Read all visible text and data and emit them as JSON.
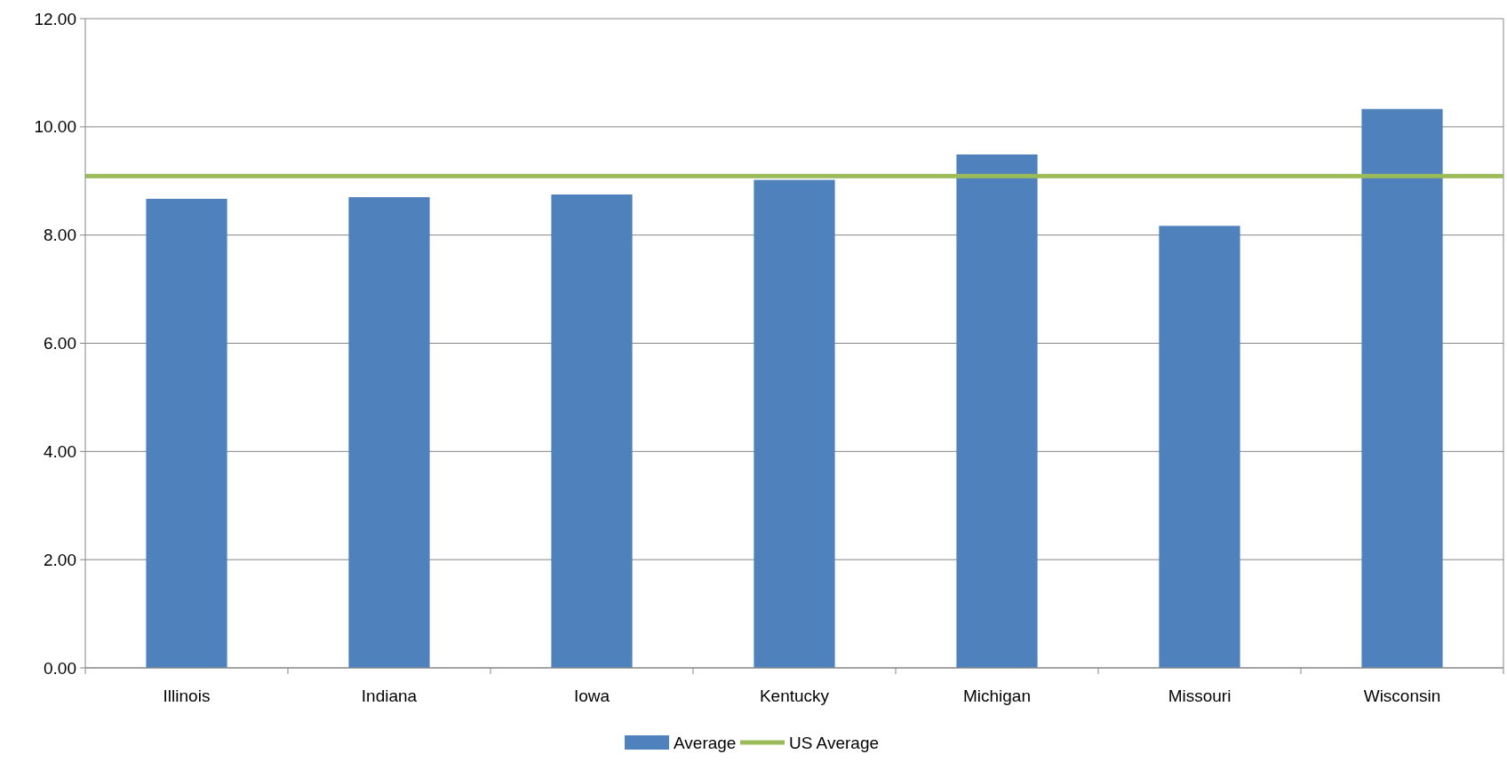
{
  "chart_data": {
    "type": "bar",
    "categories": [
      "Illinois",
      "Indiana",
      "Iowa",
      "Kentucky",
      "Michigan",
      "Missouri",
      "Wisconsin"
    ],
    "series": [
      {
        "name": "Average",
        "color": "#4f81bd",
        "values": [
          8.67,
          8.7,
          8.75,
          9.02,
          9.49,
          8.17,
          10.33
        ]
      }
    ],
    "ref_lines": [
      {
        "axis": "y",
        "value": 9.09,
        "label": "US Average",
        "color": "#9bbb59"
      }
    ],
    "ylim": [
      0,
      12
    ],
    "yticks": [
      {
        "value": 0,
        "label": "0.00"
      },
      {
        "value": 2,
        "label": "2.00"
      },
      {
        "value": 4,
        "label": "4.00"
      },
      {
        "value": 6,
        "label": "6.00"
      },
      {
        "value": 8,
        "label": "8.00"
      },
      {
        "value": 10,
        "label": "10.00"
      },
      {
        "value": 12,
        "label": "12.00"
      }
    ],
    "grid": "y",
    "legend": "bottom"
  }
}
